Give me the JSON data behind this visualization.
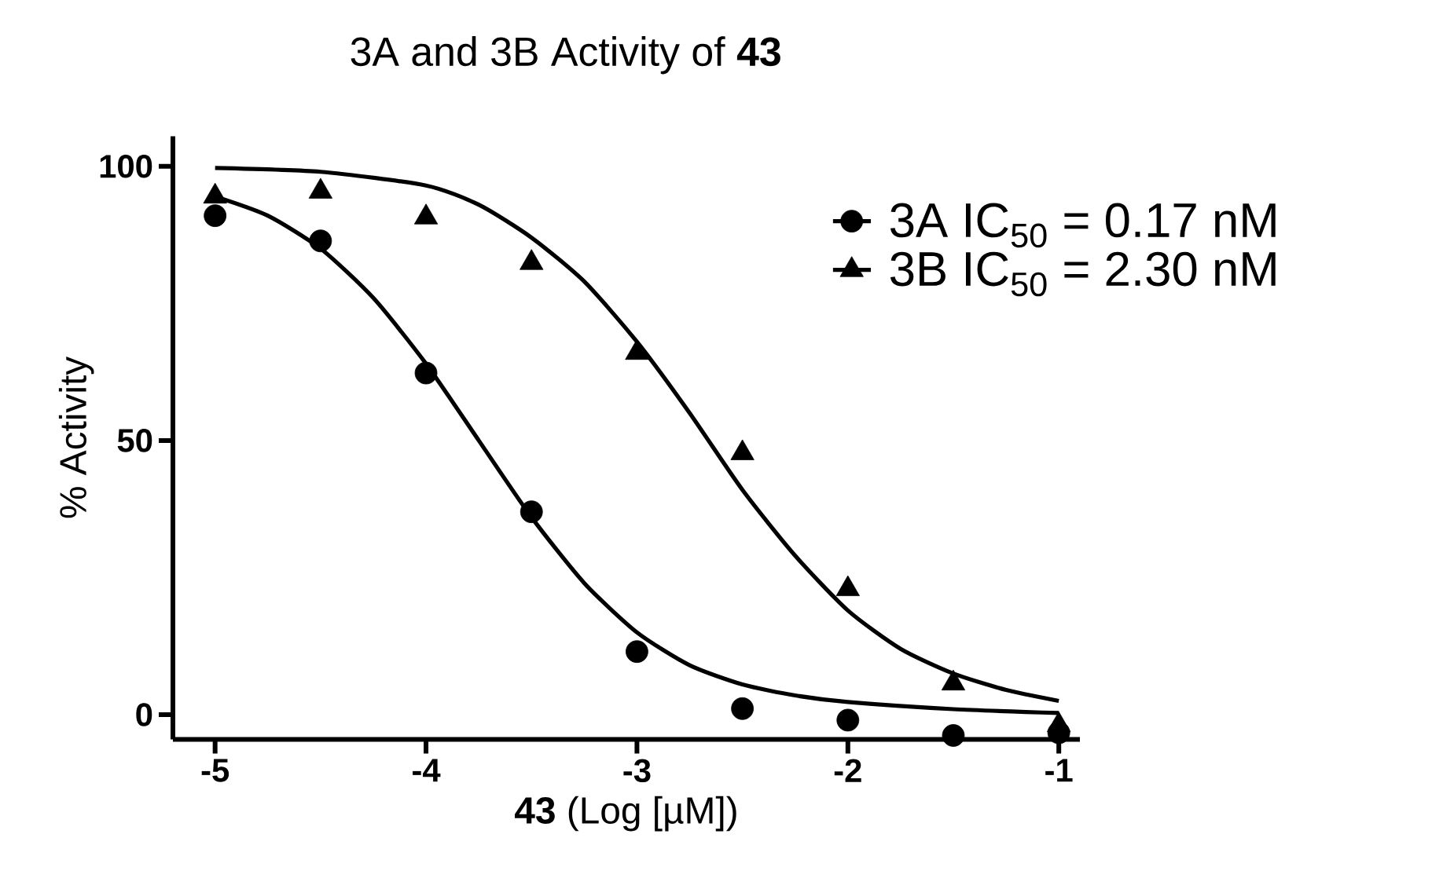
{
  "chart_data": {
    "type": "scatter",
    "title": "3A and 3B Activity of **43**",
    "xlabel": "**43** (Log [µM])",
    "ylabel": "% Activity",
    "xlim": [
      -5.2,
      -0.9
    ],
    "ylim": [
      -4.5,
      105.5
    ],
    "xticks": [
      -5,
      -4,
      -3,
      -2,
      -1
    ],
    "yticks": [
      0,
      50,
      100
    ],
    "grid": false,
    "legend": "top right",
    "series": [
      {
        "name": "3A IC$_{50}$ = 0.17 nM",
        "color": "#000000",
        "marker": "circle",
        "x": [
          -5,
          -4.5,
          -4,
          -3.5,
          -3,
          -2.5,
          -2,
          -1.5,
          -1
        ],
        "values": [
          91,
          86.4,
          62.3,
          37,
          11.5,
          1.1,
          -1,
          -3.8,
          -3.3
        ]
      },
      {
        "name": "3B IC$_{50}$ = 2.30 nM",
        "color": "#000000",
        "marker": "triangle",
        "x": [
          -5,
          -4.5,
          -4,
          -3.5,
          -3,
          -2.5,
          -2,
          -1.5,
          -1
        ],
        "values": [
          94.5,
          95.4,
          90.7,
          82.4,
          66,
          47.7,
          22.9,
          5.7,
          -1.9
        ]
      },
      {
        "type": "line",
        "color": "#000000",
        "marker": "none",
        "x": [
          -5,
          -4.75,
          -4.5,
          -4.25,
          -4,
          -3.75,
          -3.5,
          -3.25,
          -3,
          -2.75,
          -2.5,
          -2.25,
          -2,
          -1.5,
          -1
        ],
        "values": [
          94.5,
          91,
          85,
          76,
          64,
          50,
          36,
          24,
          15,
          9,
          5.5,
          3.5,
          2.3,
          1,
          0.3
        ]
      },
      {
        "type": "line",
        "color": "#000000",
        "marker": "none",
        "x": [
          -5,
          -4.5,
          -4,
          -3.75,
          -3.5,
          -3.25,
          -3,
          -2.75,
          -2.5,
          -2.25,
          -2,
          -1.75,
          -1.5,
          -1.25,
          -1
        ],
        "values": [
          99.7,
          99,
          96.5,
          93,
          87,
          79,
          68,
          55,
          41,
          29,
          19,
          12,
          7.5,
          4.5,
          2.5
        ]
      }
    ]
  }
}
